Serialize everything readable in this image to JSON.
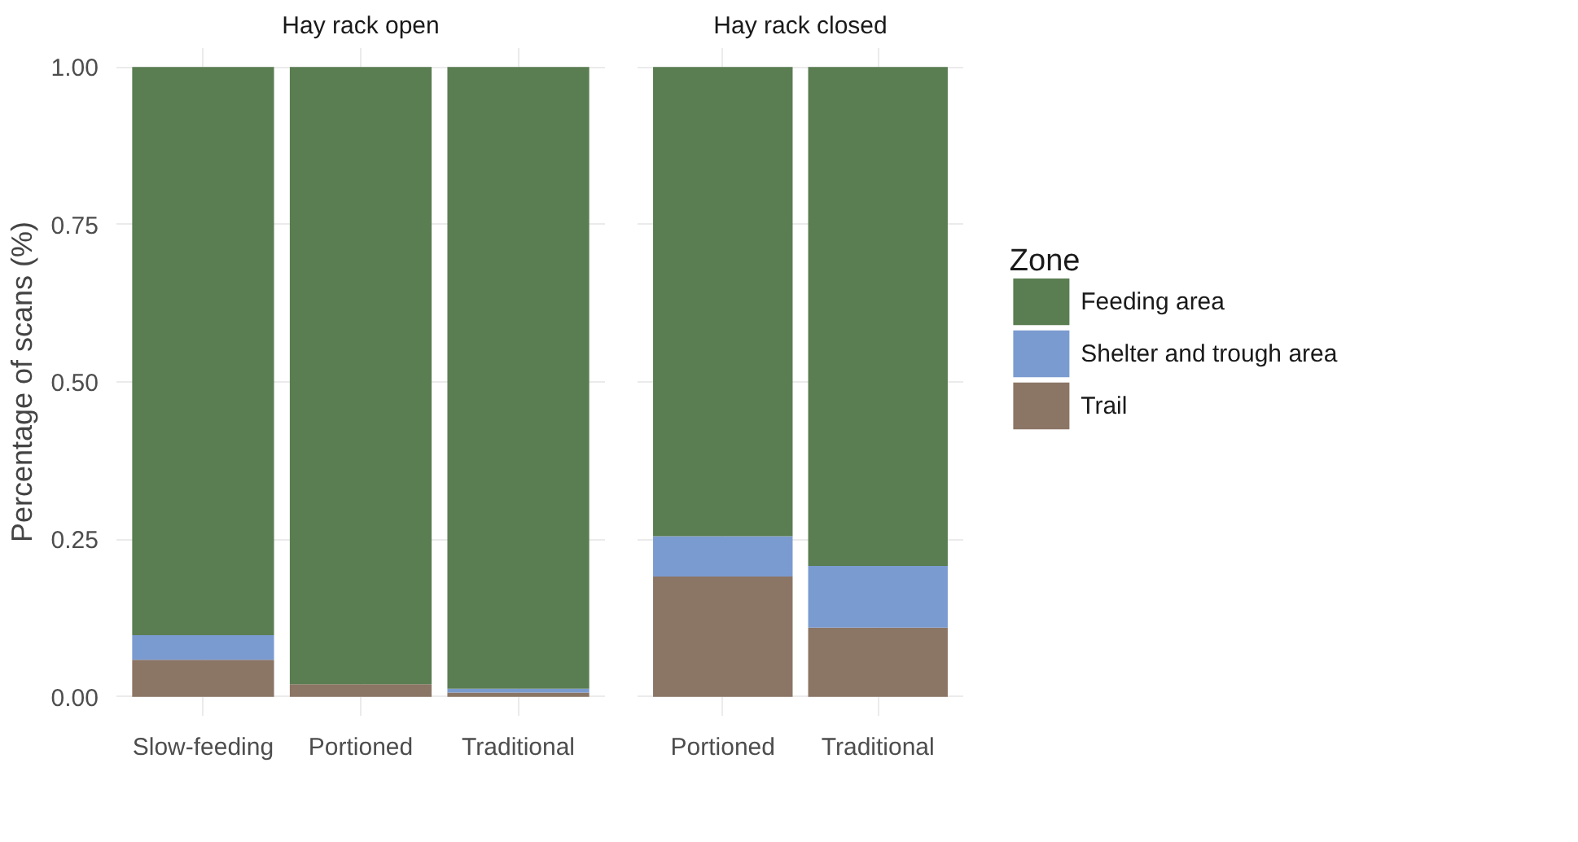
{
  "chart_data": [
    {
      "type": "bar",
      "title": "Hay rack open",
      "ylabel": "Percentage of scans (%)",
      "stacked": true,
      "categories": [
        "Slow-feeding",
        "Portioned",
        "Traditional"
      ],
      "series": [
        {
          "color": "#8b7565",
          "values": [
            0.059,
            0.02,
            0.007
          ]
        },
        {
          "color": "#7a9bd0",
          "values": [
            0.039,
            0.0,
            0.006
          ]
        },
        {
          "color": "#5a7d52",
          "values": [
            0.902,
            0.98,
            0.987
          ]
        }
      ],
      "ylim": [
        0,
        1
      ],
      "yticks": [
        {
          "value": 0,
          "label": "0.00"
        },
        {
          "value": 0.25,
          "label": "0.25"
        },
        {
          "value": 0.5,
          "label": "0.50"
        },
        {
          "value": 0.75,
          "label": "0.75"
        },
        {
          "value": 1,
          "label": "1.00"
        }
      ],
      "grid": true,
      "legend": "right"
    },
    {
      "type": "bar",
      "title": "Hay rack closed",
      "stacked": true,
      "categories": [
        "Portioned",
        "Traditional"
      ],
      "legend_title": "Zone",
      "series": [
        {
          "name": "Trail",
          "color": "#8b7565",
          "values": [
            0.191,
            0.11
          ]
        },
        {
          "name": "Shelter and trough area",
          "color": "#7a9bd0",
          "values": [
            0.064,
            0.098
          ]
        },
        {
          "name": "Feeding area",
          "color": "#5a7d52",
          "values": [
            0.745,
            0.792
          ]
        }
      ],
      "ylim": [
        0,
        1
      ],
      "yticks": [
        0,
        0.25,
        0.5,
        0.75,
        1
      ],
      "grid": true,
      "legend": "right",
      "tick_labels": "x"
    }
  ]
}
